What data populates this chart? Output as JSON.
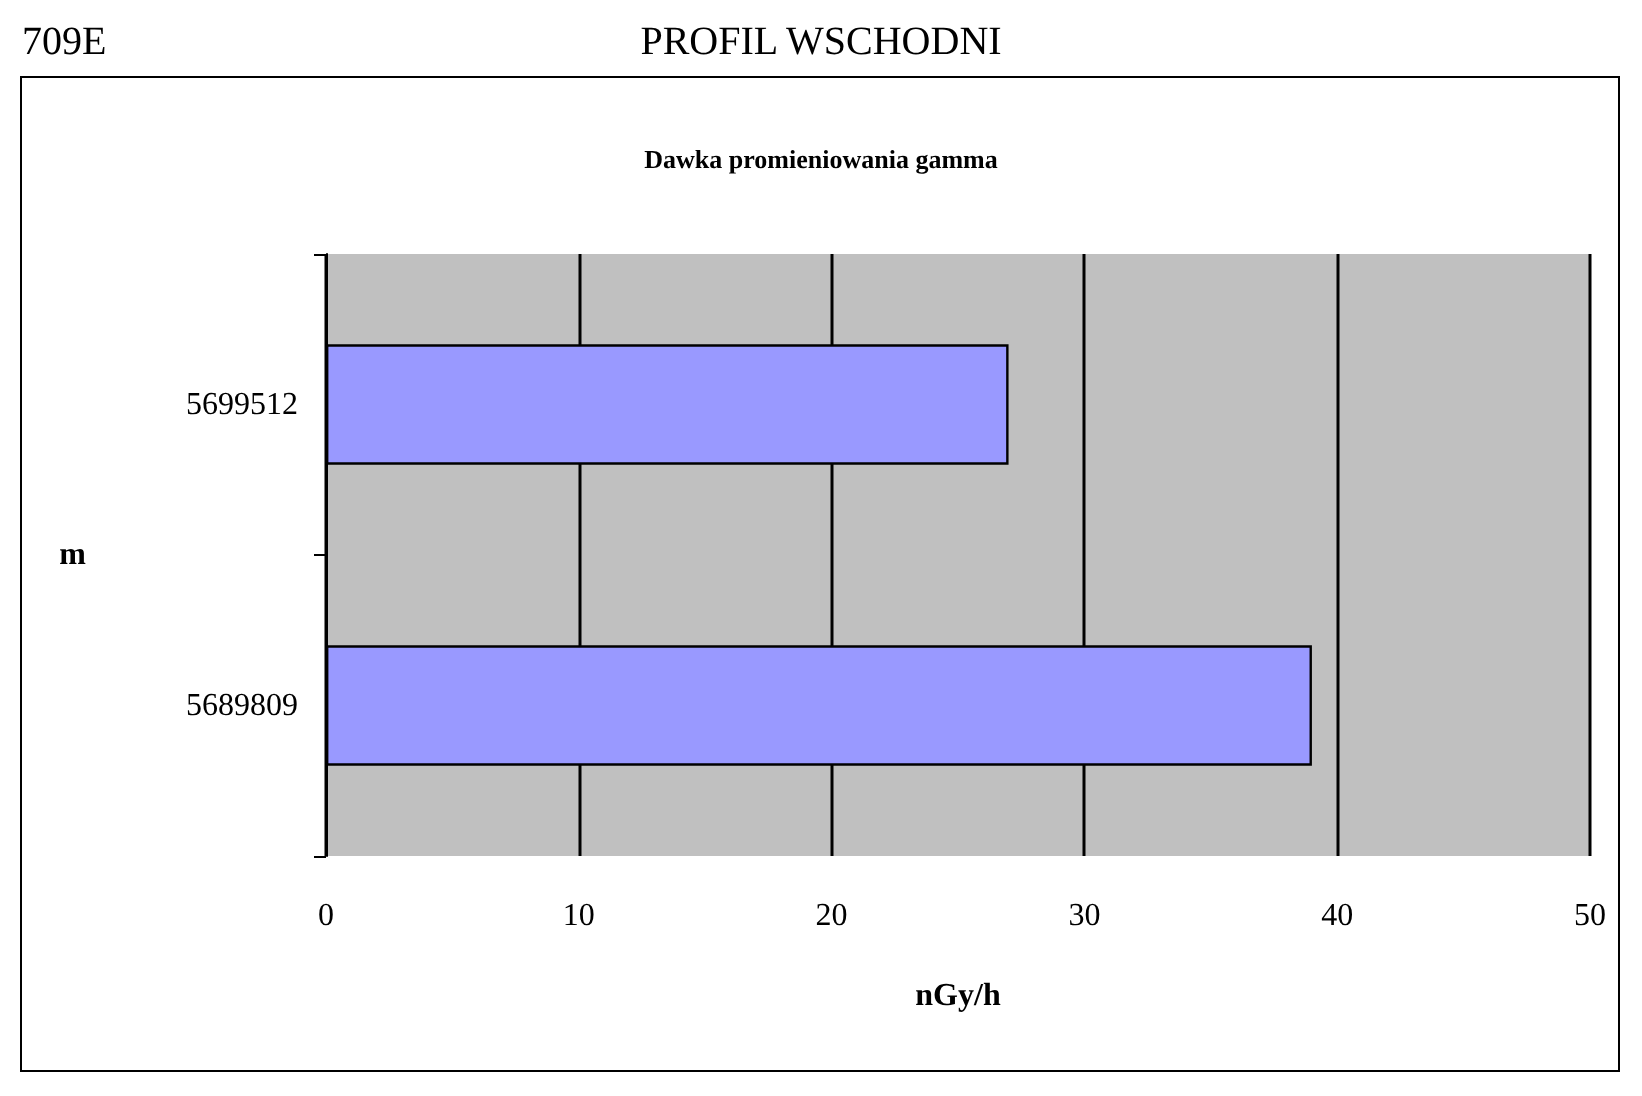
{
  "chart_data": {
    "type": "bar",
    "orientation": "horizontal",
    "title": "Dawka promieniowania gamma",
    "subtitle": "PROFIL WSCHODNI",
    "annotations": [
      "709E"
    ],
    "categories": [
      "5699512",
      "5689809"
    ],
    "values": [
      27,
      39
    ],
    "color": "#9999ff",
    "xlabel": "nGy/h",
    "ylabel": "m",
    "xlim": [
      0,
      50
    ],
    "xticks": [
      0,
      10,
      20,
      30,
      40,
      50
    ],
    "grid": "x"
  }
}
